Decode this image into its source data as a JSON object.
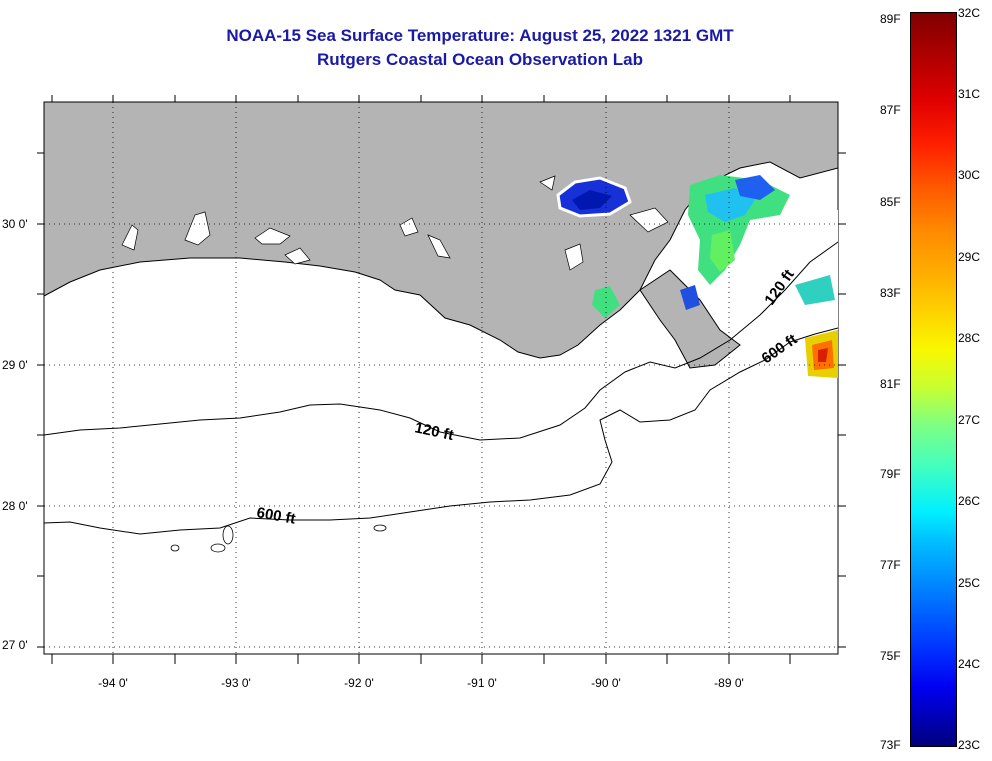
{
  "title": {
    "line1": "NOAA-15 Sea Surface Temperature:  August 25, 2022 1321 GMT",
    "line2": "Rutgers Coastal Ocean Observation Lab"
  },
  "latitude_labels": [
    "30 0'",
    "29 0'",
    "28 0'",
    "27 0'"
  ],
  "longitude_labels": [
    "-94 0'",
    "-93 0'",
    "-92 0'",
    "-91 0'",
    "-90 0'",
    "-89 0'"
  ],
  "contour_labels": [
    "120 ft",
    "600 ft",
    "120 ft",
    "600 ft"
  ],
  "colorbar": {
    "fahrenheit": [
      "89F",
      "87F",
      "85F",
      "83F",
      "81F",
      "79F",
      "77F",
      "75F",
      "73F"
    ],
    "celsius": [
      "32C",
      "31C",
      "30C",
      "29C",
      "28C",
      "27C",
      "26C",
      "25C",
      "24C",
      "23C"
    ]
  },
  "colors": {
    "title": "#1a1aa6",
    "land": "#b4b4b4",
    "water": "#ffffff"
  }
}
